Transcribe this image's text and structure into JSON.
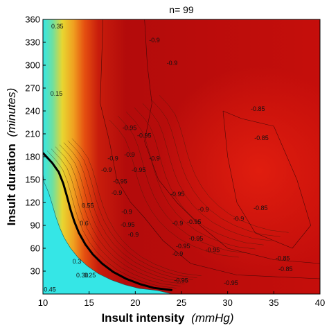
{
  "chart_data": {
    "type": "heatmap",
    "title": "n= 99",
    "xlabel": {
      "main": "Insult intensity",
      "unit": "(mmHg)"
    },
    "ylabel": {
      "main": "Insult duration",
      "unit": "(minutes)"
    },
    "xlim": [
      10,
      40
    ],
    "ylim": [
      0,
      360
    ],
    "xticks": [
      10,
      15,
      20,
      25,
      30,
      35,
      40
    ],
    "yticks": [
      30,
      60,
      90,
      120,
      150,
      180,
      210,
      240,
      270,
      300,
      330,
      360
    ],
    "colorscale": [
      "#35e6e6",
      "#e6d830",
      "#e55a10",
      "#b30b0b",
      "#dc1a10"
    ],
    "threshold_curve": [
      [
        10.0,
        185
      ],
      [
        11.0,
        172
      ],
      [
        11.7,
        160
      ],
      [
        12.2,
        145
      ],
      [
        12.6,
        128
      ],
      [
        13.0,
        110
      ],
      [
        13.4,
        95
      ],
      [
        13.9,
        80
      ],
      [
        14.6,
        65
      ],
      [
        15.4,
        52
      ],
      [
        16.4,
        40
      ],
      [
        17.6,
        29
      ],
      [
        19.0,
        20
      ],
      [
        20.5,
        13
      ],
      [
        22.0,
        8
      ],
      [
        24.0,
        5
      ]
    ],
    "contour_labels": [
      {
        "text": "0.45",
        "x": 10.1,
        "y": 3
      },
      {
        "text": "0.35",
        "x": 10.9,
        "y": 348
      },
      {
        "text": "0.15",
        "x": 10.8,
        "y": 260
      },
      {
        "text": "0.3",
        "x": 13.2,
        "y": 40
      },
      {
        "text": "0.30",
        "x": 13.6,
        "y": 22
      },
      {
        "text": "0.25",
        "x": 14.4,
        "y": 22
      },
      {
        "text": "0.55",
        "x": 14.2,
        "y": 113
      },
      {
        "text": "0.6",
        "x": 14.0,
        "y": 90
      },
      {
        "text": "-0.9",
        "x": 21.5,
        "y": 330
      },
      {
        "text": "-0.9",
        "x": 23.4,
        "y": 300
      },
      {
        "text": "-0.95",
        "x": 18.6,
        "y": 215
      },
      {
        "text": "-0.95",
        "x": 20.2,
        "y": 205
      },
      {
        "text": "-0.9",
        "x": 17.0,
        "y": 175
      },
      {
        "text": "-0.9",
        "x": 16.3,
        "y": 160
      },
      {
        "text": "-0.9",
        "x": 18.8,
        "y": 180
      },
      {
        "text": "-0.9",
        "x": 21.5,
        "y": 175
      },
      {
        "text": "-0.95",
        "x": 19.6,
        "y": 160
      },
      {
        "text": "-0.95",
        "x": 17.6,
        "y": 145
      },
      {
        "text": "-0.9",
        "x": 17.4,
        "y": 130
      },
      {
        "text": "-0.9",
        "x": 18.5,
        "y": 105
      },
      {
        "text": "-0.95",
        "x": 18.4,
        "y": 88
      },
      {
        "text": "-0.9",
        "x": 19.2,
        "y": 75
      },
      {
        "text": "-0.95",
        "x": 23.8,
        "y": 128
      },
      {
        "text": "-0.9",
        "x": 26.8,
        "y": 108
      },
      {
        "text": "-0.95",
        "x": 25.6,
        "y": 92
      },
      {
        "text": "-0.9",
        "x": 24.0,
        "y": 90
      },
      {
        "text": "-0.95",
        "x": 25.8,
        "y": 70
      },
      {
        "text": "-0.95",
        "x": 24.4,
        "y": 60
      },
      {
        "text": "-0.9",
        "x": 24.0,
        "y": 50
      },
      {
        "text": "-0.95",
        "x": 27.6,
        "y": 55
      },
      {
        "text": "-0.9",
        "x": 30.6,
        "y": 96
      },
      {
        "text": "-0.85",
        "x": 32.8,
        "y": 110
      },
      {
        "text": "-0.85",
        "x": 32.5,
        "y": 240
      },
      {
        "text": "-0.85",
        "x": 32.9,
        "y": 202
      },
      {
        "text": "-0.85",
        "x": 35.2,
        "y": 44
      },
      {
        "text": "-0.85",
        "x": 35.5,
        "y": 30
      },
      {
        "text": "-0.95",
        "x": 24.2,
        "y": 15
      },
      {
        "text": "-0.95",
        "x": 29.6,
        "y": 12
      }
    ]
  }
}
